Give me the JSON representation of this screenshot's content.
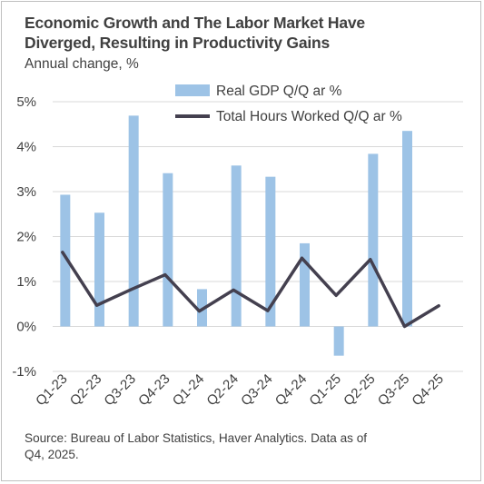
{
  "title_line1": "Economic Growth and The Labor Market Have",
  "title_line2": "Diverged, Resulting in Productivity Gains",
  "subtitle": "Annual change, %",
  "source_line1": "Source: Bureau of Labor Statistics, Haver Analytics. Data as of",
  "source_line2": "Q4, 2025.",
  "colors": {
    "bar": "#9dc3e6",
    "line": "#44404f",
    "grid": "#d9d9d9",
    "text": "#404040"
  },
  "chart_data": {
    "type": "bar+line",
    "categories": [
      "Q1-23",
      "Q2-23",
      "Q3-23",
      "Q4-23",
      "Q1-24",
      "Q2-24",
      "Q3-24",
      "Q4-24",
      "Q1-25",
      "Q2-25",
      "Q3-25",
      "Q4-25"
    ],
    "series": [
      {
        "name": "Real GDP Q/Q ar %",
        "kind": "bar",
        "values": [
          2.93,
          2.53,
          4.69,
          3.41,
          0.83,
          3.58,
          3.33,
          1.85,
          -0.65,
          3.84,
          4.35,
          null
        ]
      },
      {
        "name": "Total Hours Worked Q/Q ar %",
        "kind": "line",
        "values": [
          1.65,
          0.47,
          0.82,
          1.15,
          0.34,
          0.81,
          0.35,
          1.52,
          0.69,
          1.49,
          0.0,
          0.46
        ]
      }
    ],
    "ylim": [
      -1,
      5
    ],
    "yticks": [
      "-1%",
      "0%",
      "1%",
      "2%",
      "3%",
      "4%",
      "5%"
    ],
    "grid": true,
    "legend_position": "top"
  }
}
